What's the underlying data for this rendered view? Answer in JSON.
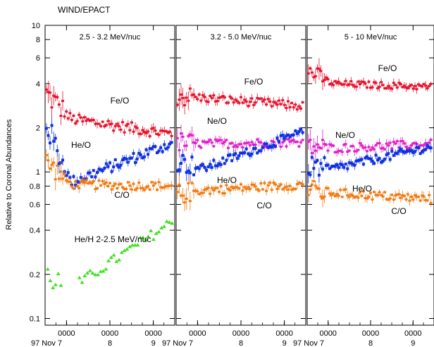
{
  "chart_data": {
    "type": "scatter",
    "title": "WIND/EPACT",
    "ylabel": "Relative to Coronal Abundances",
    "yscale": "log",
    "ylim": [
      0.09,
      10
    ],
    "y_ticks": [
      {
        "v": 0.1,
        "label": "0.1"
      },
      {
        "v": 0.2,
        "label": "0.2"
      },
      {
        "v": 0.4,
        "label": "0.4"
      },
      {
        "v": 0.6,
        "label": "0.6"
      },
      {
        "v": 0.8,
        "label": "0.8"
      },
      {
        "v": 1,
        "label": "1"
      },
      {
        "v": 2,
        "label": "2"
      },
      {
        "v": 4,
        "label": "4"
      },
      {
        "v": 6,
        "label": "6"
      },
      {
        "v": 8,
        "label": "8"
      },
      {
        "v": 10,
        "label": "10"
      }
    ],
    "x_ticks": [
      {
        "t": 0,
        "time": "",
        "date": "97 Nov 7"
      },
      {
        "t": 0.165,
        "time": "0000",
        "date": ""
      },
      {
        "t": 0.5,
        "time": "0000",
        "date": "8"
      },
      {
        "t": 0.835,
        "time": "0000",
        "date": "9"
      }
    ],
    "colors": {
      "fe": "#e8102a",
      "he": "#1030e0",
      "c": "#f07a10",
      "ne": "#e020c8",
      "heh": "#40e020"
    },
    "panels": [
      {
        "label": "2.5 - 3.2 MeV/nuc",
        "series": [
          {
            "name": "Fe/O",
            "color": "#e8102a",
            "marker": "cross",
            "start": 3.5,
            "knee": 2.3,
            "end": 1.8,
            "dip": 0.25
          },
          {
            "name": "He/O",
            "color": "#1030e0",
            "marker": "square",
            "start": 2.2,
            "knee": 0.85,
            "end": 1.6,
            "dip": 0.25
          },
          {
            "name": "C/O",
            "color": "#f07a10",
            "marker": "cross",
            "start": 1.2,
            "knee": 0.82,
            "end": 0.8,
            "dip": 0.2
          },
          {
            "name": "He/H 2-2.5 MeV/nuc",
            "color": "#40e020",
            "marker": "triangle",
            "start": 0.2,
            "knee": 0.16,
            "end": 0.47,
            "dip": 0.25
          }
        ],
        "annotations": [
          {
            "text": "Fe/O",
            "color": "#e8102a"
          },
          {
            "text": "He/O",
            "color": "#1030e0"
          },
          {
            "text": "C/O",
            "color": "#f07a10"
          },
          {
            "text": "He/H 2-2.5 MeV/nuc",
            "color": "#40e020"
          }
        ]
      },
      {
        "label": "3.2 - 5.0 MeV/nuc",
        "series": [
          {
            "name": "Fe/O",
            "color": "#e8102a",
            "marker": "cross",
            "start": 3.3,
            "knee": 3.2,
            "end": 2.8,
            "dip": 0.2
          },
          {
            "name": "Ne/O",
            "color": "#e020c8",
            "marker": "cross",
            "start": 1.6,
            "knee": 1.55,
            "end": 1.6,
            "dip": 0.2
          },
          {
            "name": "He/O",
            "color": "#1030e0",
            "marker": "square",
            "start": 1.2,
            "knee": 1.05,
            "end": 1.9,
            "dip": 0.2
          },
          {
            "name": "C/O",
            "color": "#f07a10",
            "marker": "cross",
            "start": 0.7,
            "knee": 0.75,
            "end": 0.82,
            "dip": 0.2
          }
        ],
        "annotations": [
          {
            "text": "Fe/O",
            "color": "#e8102a"
          },
          {
            "text": "Ne/O",
            "color": "#e020c8"
          },
          {
            "text": "He/O",
            "color": "#1030e0"
          },
          {
            "text": "C/O",
            "color": "#f07a10"
          }
        ]
      },
      {
        "label": "5 - 10 MeV/nuc",
        "series": [
          {
            "name": "Fe/O",
            "color": "#e8102a",
            "marker": "cross",
            "start": 5.0,
            "knee": 4.0,
            "end": 3.8,
            "dip": 0.15
          },
          {
            "name": "Ne/O",
            "color": "#e020c8",
            "marker": "cross",
            "start": 1.5,
            "knee": 1.45,
            "end": 1.55,
            "dip": 0.2
          },
          {
            "name": "He/O",
            "color": "#1030e0",
            "marker": "square",
            "start": 1.1,
            "knee": 1.05,
            "end": 1.5,
            "dip": 0.2
          },
          {
            "name": "C/O",
            "color": "#f07a10",
            "marker": "cross",
            "start": 0.75,
            "knee": 0.72,
            "end": 0.65,
            "dip": 0.2
          }
        ],
        "annotations": [
          {
            "text": "Fe/O",
            "color": "#e8102a"
          },
          {
            "text": "Ne/O",
            "color": "#e020c8"
          },
          {
            "text": "He/O",
            "color": "#1030e0"
          },
          {
            "text": "C/O",
            "color": "#f07a10"
          }
        ]
      }
    ]
  }
}
